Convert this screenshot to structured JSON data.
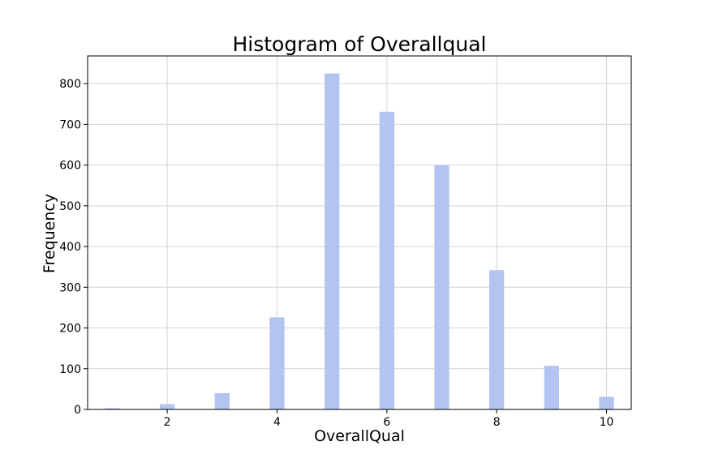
{
  "chart_data": {
    "type": "bar",
    "title": "Histogram of Overallqual",
    "xlabel": "OverallQual",
    "ylabel": "Frequency",
    "xlim": [
      0.55,
      10.45
    ],
    "ylim": [
      0,
      868
    ],
    "xticks": [
      2,
      4,
      6,
      8,
      10
    ],
    "yticks": [
      0,
      100,
      200,
      300,
      400,
      500,
      600,
      700,
      800
    ],
    "grid": true,
    "bar_color": "#b3c4f2",
    "bin_width": 0.27,
    "series": [
      {
        "x": [
          1,
          2,
          3,
          4,
          5,
          6,
          7,
          8,
          9,
          10
        ],
        "values": [
          3,
          13,
          40,
          226,
          825,
          731,
          600,
          342,
          107,
          31
        ]
      }
    ]
  }
}
